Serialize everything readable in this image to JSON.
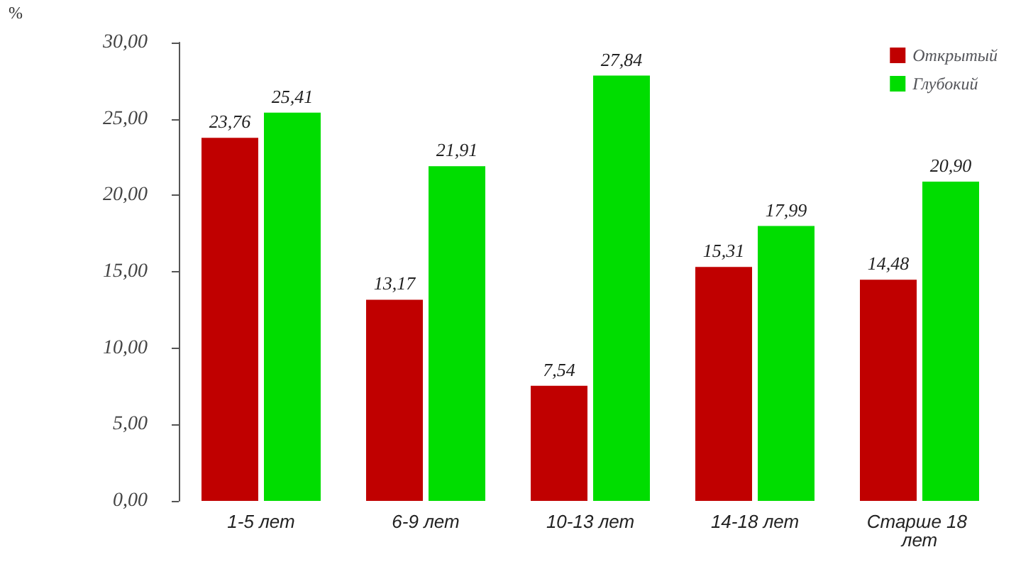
{
  "chart_data": {
    "type": "bar",
    "ylabel": "%",
    "categories": [
      "1-5 лет",
      "6-9 лет",
      "10-13 лет",
      "14-18 лет",
      "Старше 18 лет"
    ],
    "series": [
      {
        "name": "Открытый",
        "color": "#c00000",
        "values": [
          23.76,
          13.17,
          7.54,
          15.31,
          14.48
        ],
        "value_labels": [
          "23,76",
          "13,17",
          "7,54",
          "15,31",
          "14,48"
        ]
      },
      {
        "name": "Глубокий",
        "color": "#00dd00",
        "values": [
          25.41,
          21.91,
          27.84,
          17.99,
          20.9
        ],
        "value_labels": [
          "25,41",
          "21,91",
          "27,84",
          "17,99",
          "20,90"
        ]
      }
    ],
    "ylim": [
      0,
      30
    ],
    "yticks": [
      {
        "value": 0,
        "label": "0,00"
      },
      {
        "value": 5,
        "label": "5,00"
      },
      {
        "value": 10,
        "label": "10,00"
      },
      {
        "value": 15,
        "label": "15,00"
      },
      {
        "value": 20,
        "label": "20,00"
      },
      {
        "value": 25,
        "label": "25,00"
      },
      {
        "value": 30,
        "label": "30,00"
      }
    ],
    "grid": false,
    "legend": "top right"
  }
}
